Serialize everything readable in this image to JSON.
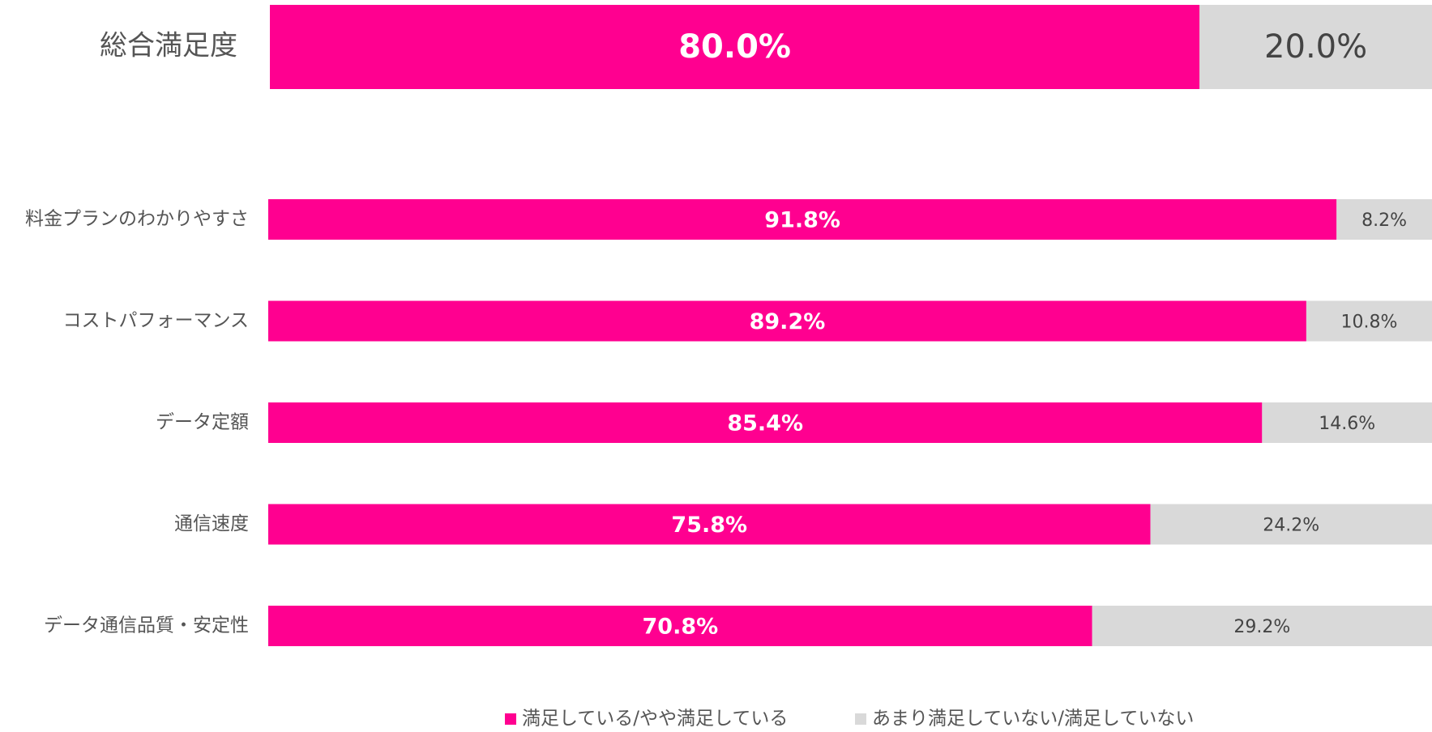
{
  "chart_data": [
    {
      "type": "bar",
      "orientation": "horizontal",
      "stacked": true,
      "categories": [
        "総合満足度"
      ],
      "xlim": [
        0,
        100
      ],
      "series": [
        {
          "color": "#ff0090",
          "values": [
            80
          ],
          "value_labels": [
            "80.0%"
          ]
        },
        {
          "color": "#d9d9d9",
          "values": [
            20
          ],
          "value_labels": [
            "20.0%"
          ]
        }
      ]
    },
    {
      "type": "bar",
      "orientation": "horizontal",
      "stacked": true,
      "categories": [
        "料金プランのわかりやすさ",
        "コストパフォーマンス",
        "データ定額",
        "通信速度",
        "データ通信品質・安定性"
      ],
      "xlim": [
        0,
        100
      ],
      "legend": "bottom",
      "series": [
        {
          "name": "満足している/やや満足している",
          "color": "#ff0090",
          "values": [
            91.8,
            89.2,
            85.4,
            75.8,
            70.8
          ],
          "value_labels": [
            "91.8%",
            "89.2%",
            "85.4%",
            "75.8%",
            "70.8%"
          ]
        },
        {
          "name": "あまり満足していない/満足していない",
          "color": "#d9d9d9",
          "values": [
            8.2,
            10.8,
            14.6,
            24.2,
            29.2
          ],
          "value_labels": [
            "8.2%",
            "10.8%",
            "14.6%",
            "24.2%",
            "29.2%"
          ]
        }
      ]
    }
  ]
}
